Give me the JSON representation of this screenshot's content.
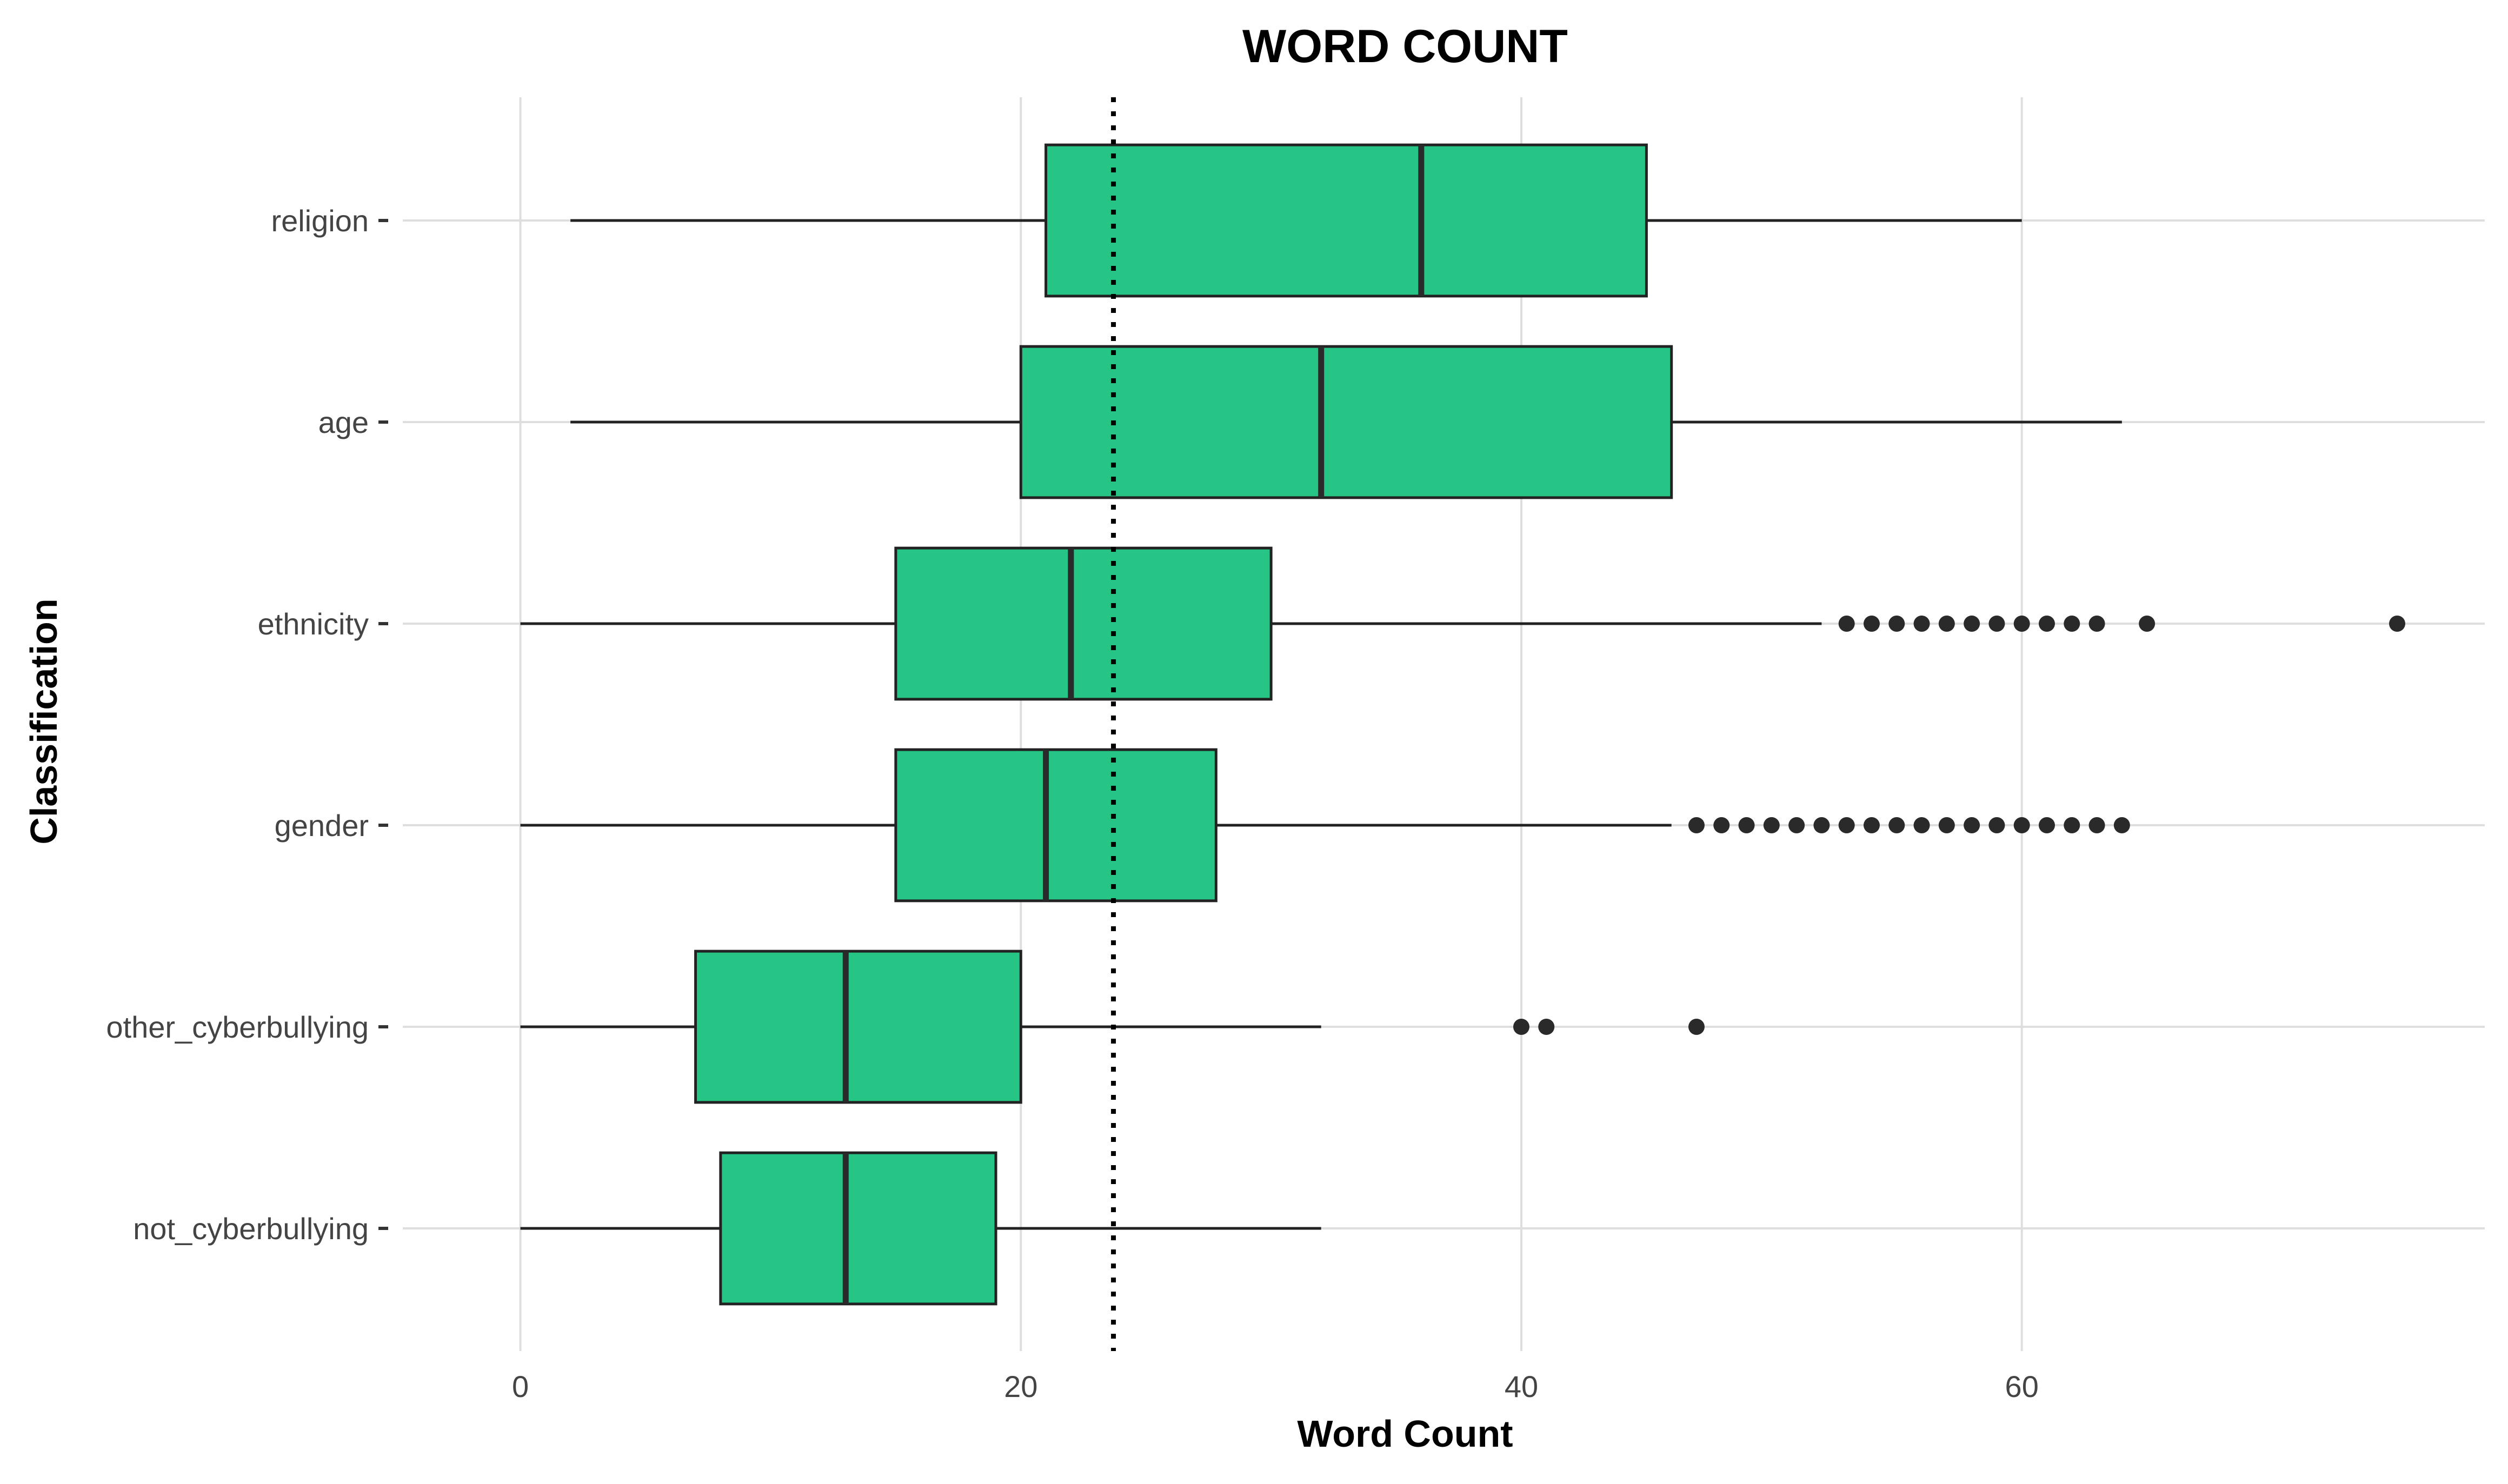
{
  "chart_data": {
    "type": "boxplot",
    "orientation": "horizontal",
    "title": "WORD COUNT",
    "xlabel": "Word Count",
    "ylabel": "Classification",
    "xlim": [
      -4.7,
      78.5
    ],
    "x_ticks": [
      0,
      20,
      40,
      60
    ],
    "grid": true,
    "reference_line": {
      "style": "dotted",
      "value": 23.7
    },
    "colors": {
      "box_fill": "#26C485",
      "box_stroke": "#222222",
      "grid": "#DEDEDE",
      "reference_line": "#000000"
    },
    "categories": [
      "religion",
      "age",
      "ethnicity",
      "gender",
      "other_cyberbullying",
      "not_cyberbullying"
    ],
    "series": [
      {
        "category": "religion",
        "whisker_low": 2,
        "q1": 21,
        "median": 36,
        "q3": 45,
        "whisker_high": 60,
        "outliers": []
      },
      {
        "category": "age",
        "whisker_low": 2,
        "q1": 20,
        "median": 32,
        "q3": 46,
        "whisker_high": 64,
        "outliers": []
      },
      {
        "category": "ethnicity",
        "whisker_low": 0,
        "q1": 15,
        "median": 22,
        "q3": 30,
        "whisker_high": 52,
        "outliers": [
          53,
          54,
          55,
          56,
          57,
          58,
          59,
          60,
          61,
          62,
          63,
          65,
          75
        ]
      },
      {
        "category": "gender",
        "whisker_low": 0,
        "q1": 15,
        "median": 21,
        "q3": 27.8,
        "whisker_high": 46,
        "outliers": [
          47,
          48,
          49,
          50,
          51,
          52,
          53,
          54,
          55,
          56,
          57,
          58,
          59,
          60,
          61,
          62,
          63,
          64
        ]
      },
      {
        "category": "other_cyberbullying",
        "whisker_low": 0,
        "q1": 7,
        "median": 13,
        "q3": 20,
        "whisker_high": 32,
        "outliers": [
          40,
          41,
          47
        ]
      },
      {
        "category": "not_cyberbullying",
        "whisker_low": 0,
        "q1": 8,
        "median": 13,
        "q3": 19,
        "whisker_high": 32,
        "outliers": []
      }
    ]
  }
}
